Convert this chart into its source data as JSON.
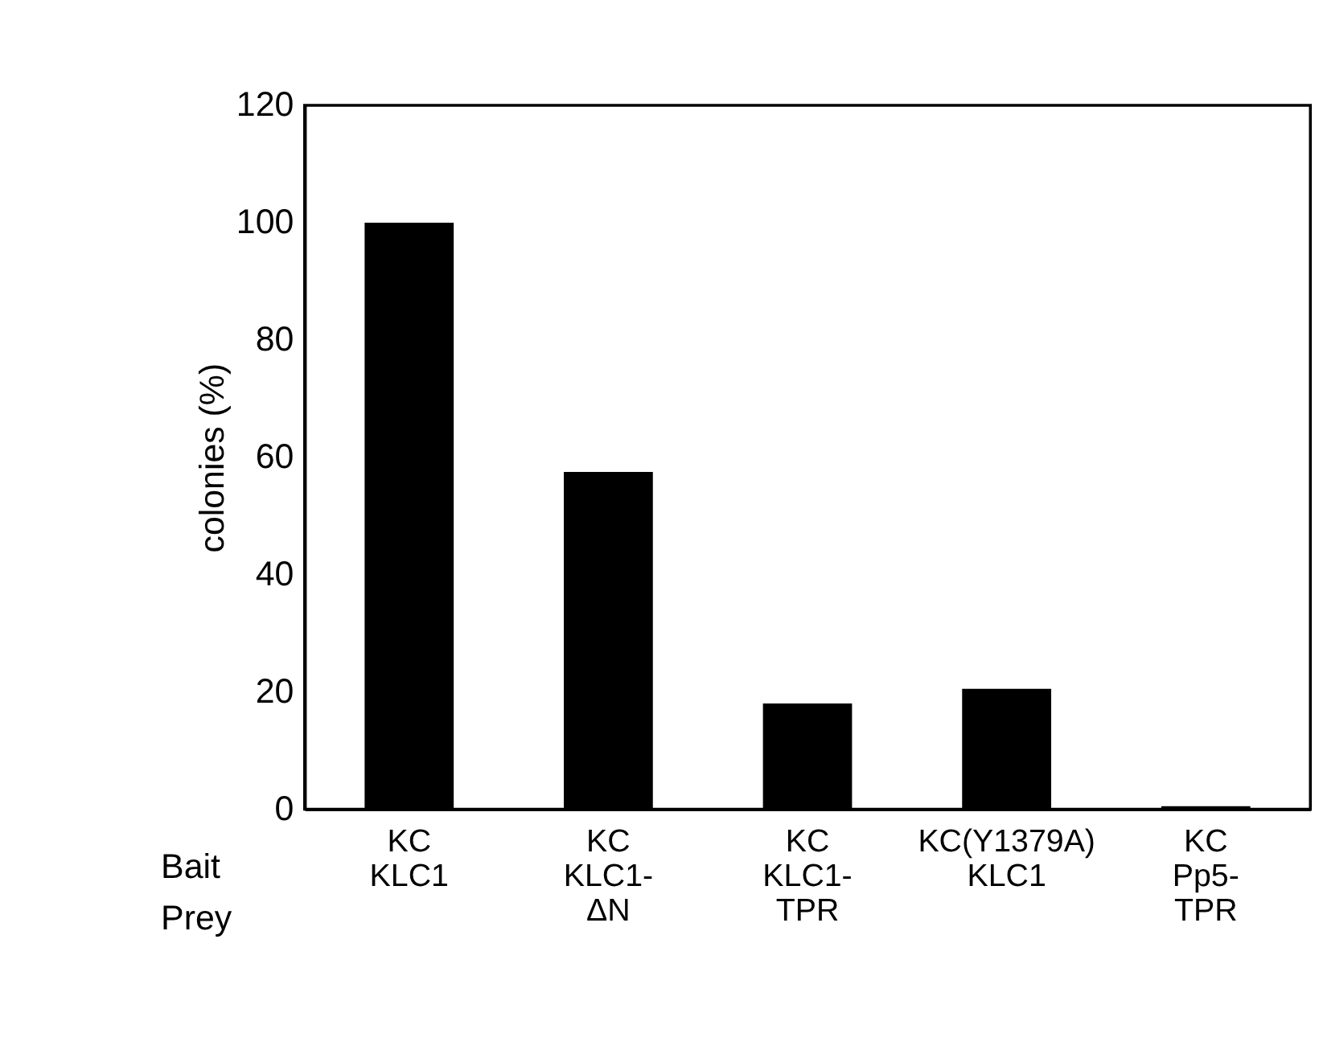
{
  "chart_data": {
    "type": "bar",
    "ylabel": "colonies (%)",
    "categories": [
      "KC\nKLC1",
      "KC\nKLC1-\nΔN",
      "KC\nKLC1-\nTPR",
      "KC(Y1379A)\nKLC1",
      "KC\nPp5-\nTPR"
    ],
    "values": [
      100,
      57.5,
      18,
      20.5,
      0.5
    ],
    "color": "#000000",
    "ylim": [
      0,
      120
    ],
    "yticks": [
      0,
      20,
      40,
      60,
      80,
      100,
      120
    ],
    "grid": false,
    "annotations": [
      "Bait",
      "Prey"
    ]
  }
}
